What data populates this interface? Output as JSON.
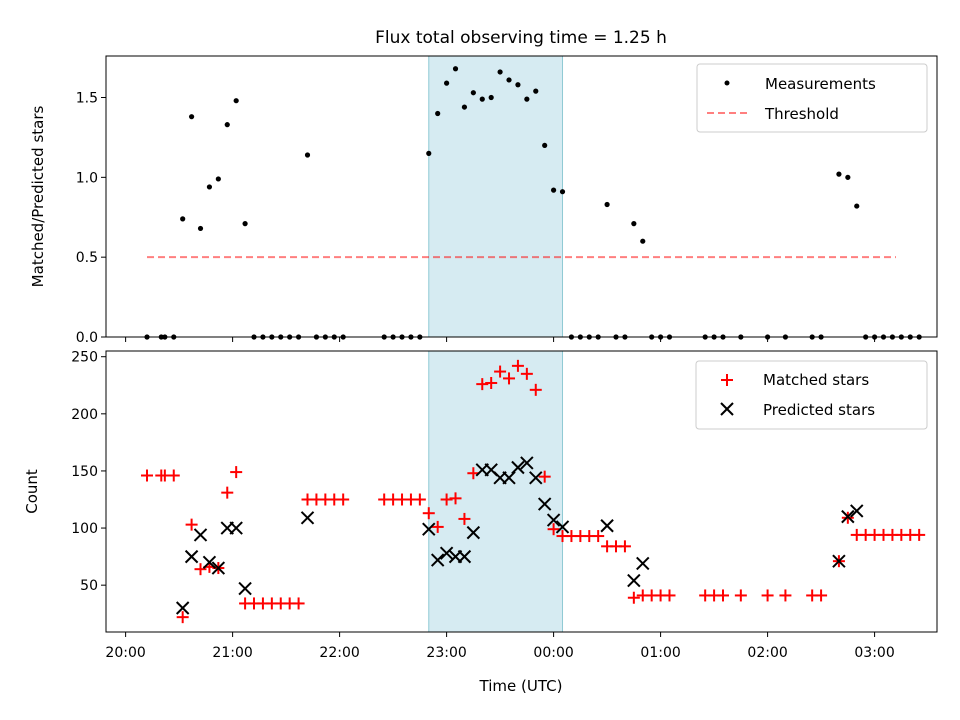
{
  "title": "Flux total observing time = 1.25 h",
  "colors": {
    "measurement": "#000000",
    "threshold": "#ff0000",
    "matched": "#ff0000",
    "predicted": "#000000",
    "highlight": "#add8e6"
  },
  "chart_data": [
    {
      "type": "scatter",
      "ylabel": "Matched/Predicted stars",
      "xlabel": "",
      "ylim": [
        0,
        1.76
      ],
      "yticks": [
        0,
        0.5,
        1.0,
        1.5
      ],
      "ytick_labels": [
        "0.0",
        "0.5",
        "1.0",
        "1.5"
      ],
      "grid": false,
      "legend": {
        "placement": "top-right",
        "entries": [
          "Measurements",
          "Threshold"
        ]
      },
      "highlight_span": [
        "22:50",
        "00:05"
      ],
      "threshold": {
        "y": 0.5,
        "x": [
          "20:12",
          "03:12"
        ]
      },
      "series": [
        {
          "name": "Measurements",
          "points": [
            [
              "20:12",
              0
            ],
            [
              "20:20",
              0
            ],
            [
              "20:22",
              0
            ],
            [
              "20:27",
              0
            ],
            [
              "20:32",
              0.74
            ],
            [
              "20:37",
              1.38
            ],
            [
              "20:42",
              0.68
            ],
            [
              "20:47",
              0.94
            ],
            [
              "20:52",
              0.99
            ],
            [
              "20:57",
              1.33
            ],
            [
              "21:02",
              1.48
            ],
            [
              "21:07",
              0.71
            ],
            [
              "21:12",
              0
            ],
            [
              "21:17",
              0
            ],
            [
              "21:22",
              0
            ],
            [
              "21:27",
              0
            ],
            [
              "21:32",
              0
            ],
            [
              "21:37",
              0
            ],
            [
              "21:42",
              1.14
            ],
            [
              "21:47",
              0
            ],
            [
              "21:52",
              0
            ],
            [
              "21:57",
              0
            ],
            [
              "22:02",
              0
            ],
            [
              "22:25",
              0
            ],
            [
              "22:30",
              0
            ],
            [
              "22:35",
              0
            ],
            [
              "22:40",
              0
            ],
            [
              "22:45",
              0
            ],
            [
              "22:50",
              1.15
            ],
            [
              "22:55",
              1.4
            ],
            [
              "23:00",
              1.59
            ],
            [
              "23:05",
              1.68
            ],
            [
              "23:10",
              1.44
            ],
            [
              "23:15",
              1.53
            ],
            [
              "23:20",
              1.49
            ],
            [
              "23:25",
              1.5
            ],
            [
              "23:30",
              1.66
            ],
            [
              "23:35",
              1.61
            ],
            [
              "23:40",
              1.58
            ],
            [
              "23:45",
              1.49
            ],
            [
              "23:50",
              1.54
            ],
            [
              "23:55",
              1.2
            ],
            [
              "00:00",
              0.92
            ],
            [
              "00:05",
              0.91
            ],
            [
              "00:10",
              0
            ],
            [
              "00:15",
              0
            ],
            [
              "00:20",
              0
            ],
            [
              "00:25",
              0
            ],
            [
              "00:30",
              0.83
            ],
            [
              "00:35",
              0
            ],
            [
              "00:40",
              0
            ],
            [
              "00:45",
              0.71
            ],
            [
              "00:50",
              0.6
            ],
            [
              "00:55",
              0
            ],
            [
              "01:00",
              0
            ],
            [
              "01:05",
              0
            ],
            [
              "01:25",
              0
            ],
            [
              "01:30",
              0
            ],
            [
              "01:35",
              0
            ],
            [
              "01:45",
              0
            ],
            [
              "02:00",
              0
            ],
            [
              "02:10",
              0
            ],
            [
              "02:25",
              0
            ],
            [
              "02:30",
              0
            ],
            [
              "02:40",
              1.02
            ],
            [
              "02:45",
              1.0
            ],
            [
              "02:50",
              0.82
            ],
            [
              "02:55",
              0
            ],
            [
              "03:00",
              0
            ],
            [
              "03:05",
              0
            ],
            [
              "03:10",
              0
            ],
            [
              "03:15",
              0
            ],
            [
              "03:20",
              0
            ],
            [
              "03:25",
              0
            ]
          ]
        }
      ]
    },
    {
      "type": "scatter",
      "xlabel": "Time (UTC)",
      "ylabel": "Count",
      "xlim": [
        "19:49",
        "03:35"
      ],
      "xticks": [
        "20:00",
        "21:00",
        "22:00",
        "23:00",
        "00:00",
        "01:00",
        "02:00",
        "03:00"
      ],
      "ylim": [
        9,
        255
      ],
      "yticks": [
        50,
        100,
        150,
        200,
        250
      ],
      "grid": false,
      "legend": {
        "placement": "top-right",
        "entries": [
          "Matched stars",
          "Predicted stars"
        ]
      },
      "highlight_span": [
        "22:50",
        "00:05"
      ],
      "series": [
        {
          "name": "Matched stars",
          "marker": "plus",
          "points": [
            [
              "20:12",
              146
            ],
            [
              "20:20",
              146
            ],
            [
              "20:22",
              146
            ],
            [
              "20:27",
              146
            ],
            [
              "20:32",
              22
            ],
            [
              "20:37",
              103
            ],
            [
              "20:42",
              64
            ],
            [
              "20:47",
              66
            ],
            [
              "20:52",
              65
            ],
            [
              "20:57",
              131
            ],
            [
              "21:02",
              149
            ],
            [
              "21:07",
              34
            ],
            [
              "21:12",
              34
            ],
            [
              "21:17",
              34
            ],
            [
              "21:22",
              34
            ],
            [
              "21:27",
              34
            ],
            [
              "21:32",
              34
            ],
            [
              "21:37",
              34
            ],
            [
              "21:42",
              125
            ],
            [
              "21:47",
              125
            ],
            [
              "21:52",
              125
            ],
            [
              "21:57",
              125
            ],
            [
              "22:02",
              125
            ],
            [
              "22:25",
              125
            ],
            [
              "22:30",
              125
            ],
            [
              "22:35",
              125
            ],
            [
              "22:40",
              125
            ],
            [
              "22:45",
              125
            ],
            [
              "22:50",
              113
            ],
            [
              "22:55",
              101
            ],
            [
              "23:00",
              125
            ],
            [
              "23:05",
              126
            ],
            [
              "23:10",
              108
            ],
            [
              "23:15",
              148
            ],
            [
              "23:20",
              226
            ],
            [
              "23:25",
              227
            ],
            [
              "23:30",
              237
            ],
            [
              "23:35",
              231
            ],
            [
              "23:40",
              242
            ],
            [
              "23:45",
              235
            ],
            [
              "23:50",
              221
            ],
            [
              "23:55",
              145
            ],
            [
              "00:00",
              99
            ],
            [
              "00:05",
              93
            ],
            [
              "00:10",
              93
            ],
            [
              "00:15",
              93
            ],
            [
              "00:20",
              93
            ],
            [
              "00:25",
              93
            ],
            [
              "00:30",
              84
            ],
            [
              "00:35",
              84
            ],
            [
              "00:40",
              84
            ],
            [
              "00:45",
              39
            ],
            [
              "00:50",
              41
            ],
            [
              "00:55",
              41
            ],
            [
              "01:00",
              41
            ],
            [
              "01:05",
              41
            ],
            [
              "01:25",
              41
            ],
            [
              "01:30",
              41
            ],
            [
              "01:35",
              41
            ],
            [
              "01:45",
              41
            ],
            [
              "02:00",
              41
            ],
            [
              "02:10",
              41
            ],
            [
              "02:25",
              41
            ],
            [
              "02:30",
              41
            ],
            [
              "02:40",
              71
            ],
            [
              "02:45",
              109
            ],
            [
              "02:50",
              94
            ],
            [
              "02:55",
              94
            ],
            [
              "03:00",
              94
            ],
            [
              "03:05",
              94
            ],
            [
              "03:10",
              94
            ],
            [
              "03:15",
              94
            ],
            [
              "03:20",
              94
            ],
            [
              "03:25",
              94
            ]
          ]
        },
        {
          "name": "Predicted stars",
          "marker": "x",
          "points": [
            [
              "20:32",
              30
            ],
            [
              "20:37",
              75
            ],
            [
              "20:42",
              94
            ],
            [
              "20:47",
              70
            ],
            [
              "20:52",
              65
            ],
            [
              "20:57",
              100
            ],
            [
              "21:02",
              100
            ],
            [
              "21:07",
              47
            ],
            [
              "21:42",
              109
            ],
            [
              "22:50",
              99
            ],
            [
              "22:55",
              72
            ],
            [
              "23:00",
              78
            ],
            [
              "23:05",
              75
            ],
            [
              "23:10",
              75
            ],
            [
              "23:15",
              96
            ],
            [
              "23:20",
              151
            ],
            [
              "23:25",
              151
            ],
            [
              "23:30",
              144
            ],
            [
              "23:35",
              144
            ],
            [
              "23:40",
              153
            ],
            [
              "23:45",
              157
            ],
            [
              "23:50",
              144
            ],
            [
              "23:55",
              121
            ],
            [
              "00:00",
              107
            ],
            [
              "00:05",
              101
            ],
            [
              "00:30",
              102
            ],
            [
              "00:45",
              54
            ],
            [
              "00:50",
              69
            ],
            [
              "02:40",
              71
            ],
            [
              "02:45",
              110
            ],
            [
              "02:50",
              115
            ]
          ]
        }
      ]
    }
  ]
}
